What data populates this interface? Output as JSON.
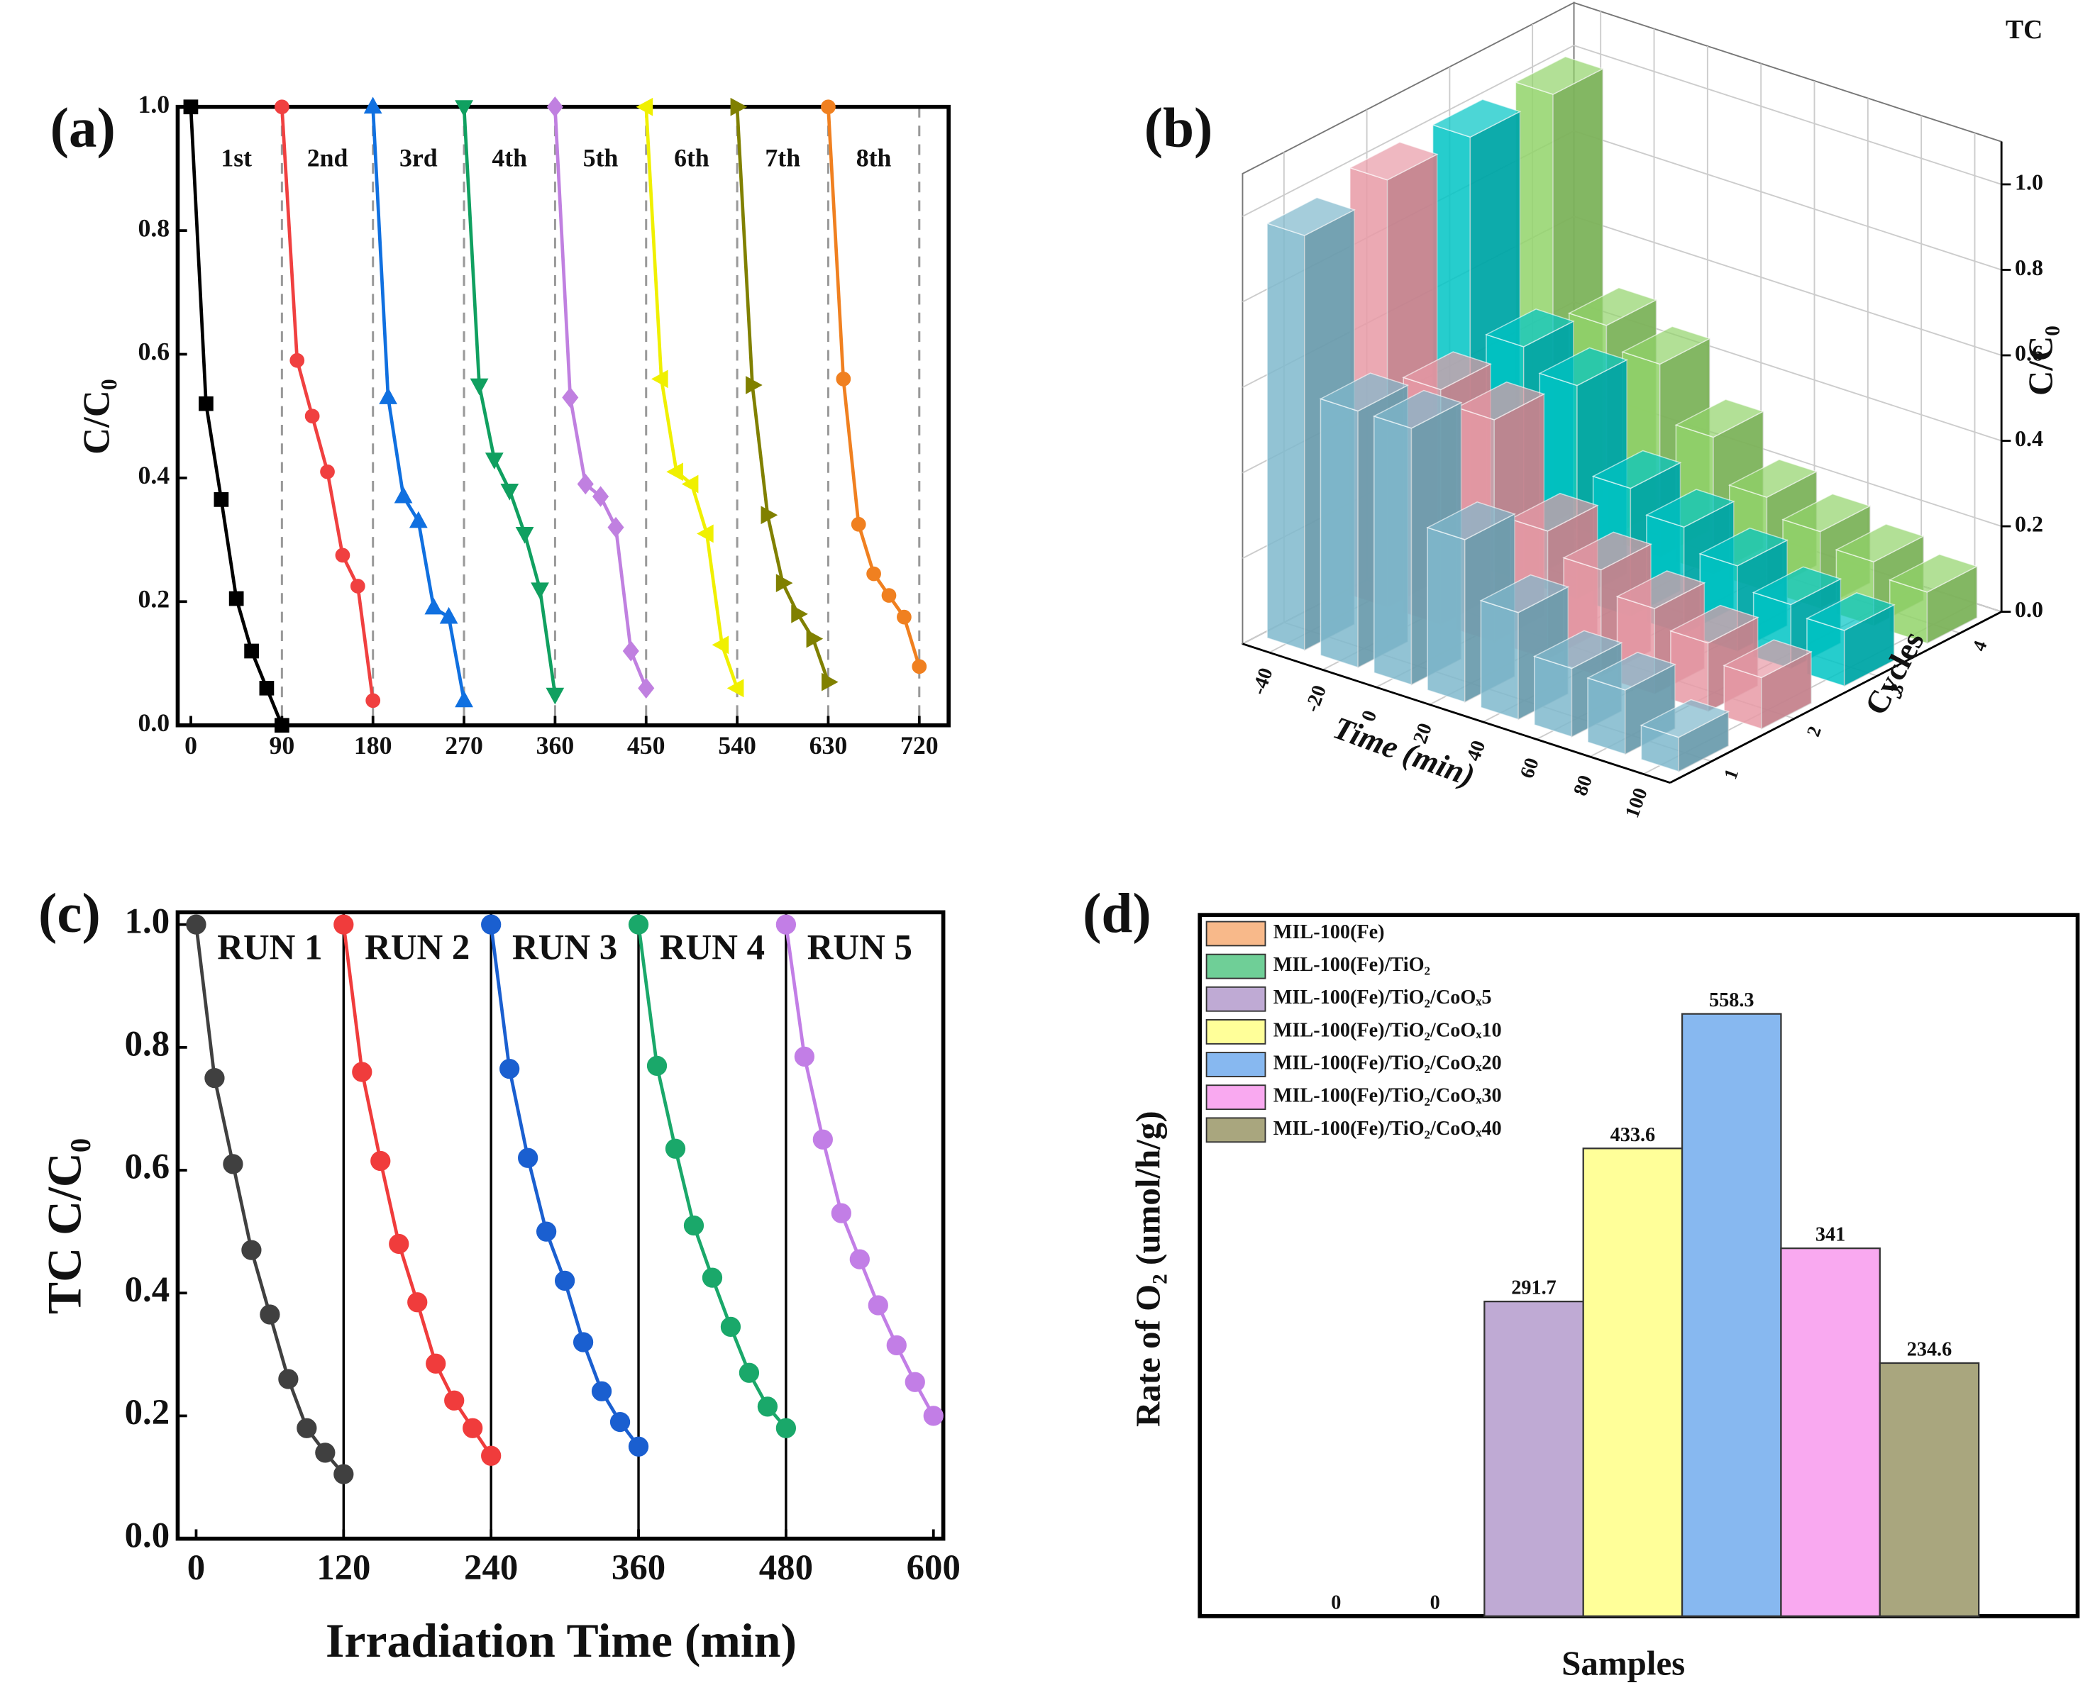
{
  "chart_data": [
    {
      "type": "line",
      "panel_label": "(a)",
      "ylabel": "C/C₀",
      "xlim": [
        -13,
        749
      ],
      "ylim": [
        0,
        1
      ],
      "xticks": [
        0,
        90,
        180,
        270,
        360,
        450,
        540,
        630,
        720
      ],
      "yticks": [
        {
          "value": 0,
          "label": "0.0"
        },
        0.2,
        0.4,
        0.6,
        0.8,
        {
          "value": 1,
          "label": "1.0"
        }
      ],
      "dividers": [
        90,
        180,
        270,
        360,
        450,
        540,
        630,
        720
      ],
      "divider_style": "dashed",
      "annotations": [
        "1st",
        "2nd",
        "3rd",
        "4th",
        "5th",
        "6th",
        "7th",
        "8th"
      ],
      "series": [
        {
          "color": "#000000",
          "marker": "square",
          "x": [
            0,
            15,
            30,
            45,
            60,
            75,
            90
          ],
          "values": [
            1.0,
            0.52,
            0.365,
            0.205,
            0.12,
            0.06,
            0.0
          ]
        },
        {
          "color": "#f04040",
          "marker": "circle",
          "x": [
            90,
            105,
            120,
            135,
            150,
            165,
            180
          ],
          "values": [
            1.0,
            0.59,
            0.5,
            0.41,
            0.275,
            0.225,
            0.04
          ]
        },
        {
          "color": "#1070e0",
          "marker": "triangle-up",
          "x": [
            180,
            195,
            210,
            225,
            240,
            255,
            270
          ],
          "values": [
            1.0,
            0.53,
            0.37,
            0.33,
            0.19,
            0.175,
            0.04
          ]
        },
        {
          "color": "#10a060",
          "marker": "triangle-down",
          "x": [
            270,
            285,
            300,
            315,
            330,
            345,
            360
          ],
          "values": [
            1.0,
            0.55,
            0.43,
            0.38,
            0.31,
            0.22,
            0.05
          ]
        },
        {
          "color": "#c080e0",
          "marker": "diamond",
          "x": [
            360,
            375,
            390,
            405,
            420,
            435,
            450
          ],
          "values": [
            1.0,
            0.53,
            0.39,
            0.37,
            0.32,
            0.12,
            0.06
          ]
        },
        {
          "color": "#f0f000",
          "marker": "triangle-left",
          "x": [
            450,
            465,
            480,
            495,
            510,
            525,
            540
          ],
          "values": [
            1.0,
            0.56,
            0.41,
            0.39,
            0.31,
            0.13,
            0.06
          ]
        },
        {
          "color": "#808000",
          "marker": "triangle-right",
          "x": [
            540,
            555,
            570,
            585,
            600,
            615,
            630
          ],
          "values": [
            1.0,
            0.55,
            0.34,
            0.23,
            0.18,
            0.14,
            0.07
          ]
        },
        {
          "color": "#f08020",
          "marker": "circle",
          "x": [
            630,
            645,
            660,
            675,
            690,
            705,
            720
          ],
          "values": [
            1.0,
            0.56,
            0.325,
            0.245,
            0.21,
            0.175,
            0.095
          ]
        }
      ]
    },
    {
      "type": "bar3d",
      "panel_label": "(b)",
      "title": "TC",
      "xlabel": "Time (min)",
      "ylabel": "Cycles",
      "zlabel": "C/C₀",
      "xlim": [
        -50,
        110
      ],
      "ylim": [
        0.5,
        4.5
      ],
      "zlim": [
        0,
        1.1
      ],
      "xticks": [
        -40,
        -20,
        0,
        20,
        40,
        60,
        80,
        100
      ],
      "yticks": [
        1,
        2,
        3,
        4
      ],
      "zticks": [
        {
          "value": 0,
          "label": "0.0"
        },
        0.2,
        0.4,
        0.6,
        0.8,
        {
          "value": 1,
          "label": "1.0"
        }
      ],
      "x": [
        -40,
        -20,
        0,
        20,
        40,
        60,
        80,
        100
      ],
      "series": [
        {
          "color": "#7fb8cc",
          "values": [
            0.97,
            0.6,
            0.6,
            0.38,
            0.25,
            0.16,
            0.15,
            0.08
          ]
        },
        {
          "color": "#e89aa6",
          "values": [
            1.0,
            0.55,
            0.52,
            0.3,
            0.25,
            0.2,
            0.16,
            0.12
          ]
        },
        {
          "color": "#00c4c4",
          "values": [
            1.0,
            0.55,
            0.5,
            0.3,
            0.25,
            0.2,
            0.15,
            0.13
          ]
        },
        {
          "color": "#92d36a",
          "values": [
            1.0,
            0.5,
            0.45,
            0.32,
            0.22,
            0.18,
            0.15,
            0.12
          ]
        }
      ]
    },
    {
      "type": "line",
      "panel_label": "(c)",
      "xlabel": "Irradiation Time (min)",
      "ylabel": "TC C/C₀",
      "xlim": [
        -15,
        608
      ],
      "ylim": [
        0,
        1.02
      ],
      "xticks": [
        0,
        120,
        240,
        360,
        480,
        600
      ],
      "yticks": [
        {
          "value": 0,
          "label": "0.0"
        },
        0.2,
        0.4,
        0.6,
        0.8,
        {
          "value": 1,
          "label": "1.0"
        }
      ],
      "dividers": [
        120,
        240,
        360,
        480
      ],
      "divider_style": "solid",
      "annotations": [
        "RUN 1",
        "RUN 2",
        "RUN 3",
        "RUN 4",
        "RUN 5"
      ],
      "series": [
        {
          "color": "#404040",
          "marker": "circle",
          "x": [
            0,
            15,
            30,
            45,
            60,
            75,
            90,
            105,
            120
          ],
          "values": [
            1.0,
            0.75,
            0.61,
            0.47,
            0.365,
            0.26,
            0.18,
            0.14,
            0.105
          ]
        },
        {
          "color": "#f03c3c",
          "marker": "circle",
          "x": [
            120,
            135,
            150,
            165,
            180,
            195,
            210,
            225,
            240
          ],
          "values": [
            1.0,
            0.76,
            0.615,
            0.48,
            0.385,
            0.285,
            0.225,
            0.18,
            0.135
          ]
        },
        {
          "color": "#1a5fd0",
          "marker": "circle",
          "x": [
            240,
            255,
            270,
            285,
            300,
            315,
            330,
            345,
            360
          ],
          "values": [
            1.0,
            0.765,
            0.62,
            0.5,
            0.42,
            0.32,
            0.24,
            0.19,
            0.15
          ]
        },
        {
          "color": "#1aa86a",
          "marker": "circle",
          "x": [
            360,
            375,
            390,
            405,
            420,
            435,
            450,
            465,
            480
          ],
          "values": [
            1.0,
            0.77,
            0.635,
            0.51,
            0.425,
            0.345,
            0.27,
            0.215,
            0.18
          ]
        },
        {
          "color": "#c27ee6",
          "marker": "circle",
          "x": [
            480,
            495,
            510,
            525,
            540,
            555,
            570,
            585,
            600
          ],
          "values": [
            1.0,
            0.785,
            0.65,
            0.53,
            0.455,
            0.38,
            0.315,
            0.255,
            0.2
          ]
        }
      ]
    },
    {
      "type": "bar",
      "panel_label": "(d)",
      "xlabel": "Samples",
      "ylabel": "Rate of O₂ (umol/h/g)",
      "ylim": [
        0,
        650
      ],
      "categories": [
        "MIL-100(Fe)",
        "MIL-100(Fe)/TiO₂",
        "MIL-100(Fe)/TiO₂/CoOₓ5",
        "MIL-100(Fe)/TiO₂/CoOₓ10",
        "MIL-100(Fe)/TiO₂/CoOₓ20",
        "MIL-100(Fe)/TiO₂/CoOₓ30",
        "MIL-100(Fe)/TiO₂/CoOₓ40"
      ],
      "values": [
        0,
        0,
        291.7,
        433.6,
        558.3,
        341,
        234.6
      ],
      "colors": [
        "#f8b98a",
        "#6fcf97",
        "#bfaad4",
        "#ffff99",
        "#87b8f0",
        "#f9a9f0",
        "#a9a67e"
      ]
    }
  ]
}
